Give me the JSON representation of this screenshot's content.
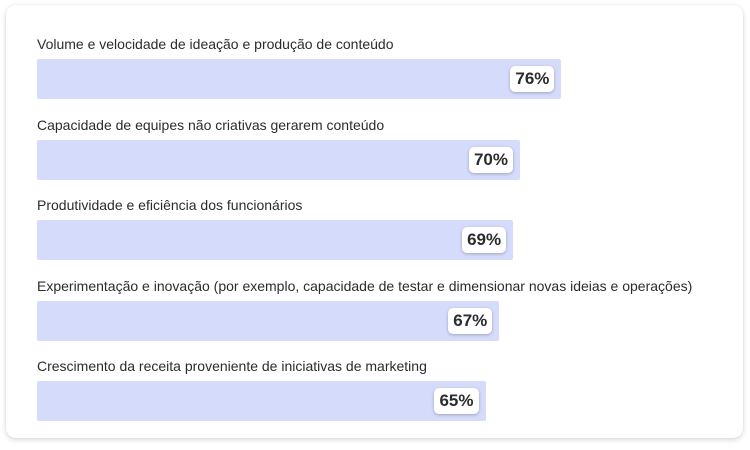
{
  "chart_data": {
    "type": "bar",
    "orientation": "horizontal",
    "categories": [
      "Volume e velocidade de ideação e produção de conteúdo",
      "Capacidade de equipes não criativas gerarem conteúdo",
      "Produtividade e eficiência dos funcionários",
      "Experimentação e inovação (por exemplo, capacidade de testar e dimensionar novas ideias e operações)",
      "Crescimento da receita proveniente de iniciativas de marketing"
    ],
    "values": [
      76,
      70,
      69,
      67,
      65
    ],
    "value_labels": [
      "76%",
      "70%",
      "69%",
      "67%",
      "65%"
    ],
    "unit": "%",
    "xlim": [
      0,
      100
    ],
    "grid": false,
    "bar_color": "#d5dcfb"
  }
}
